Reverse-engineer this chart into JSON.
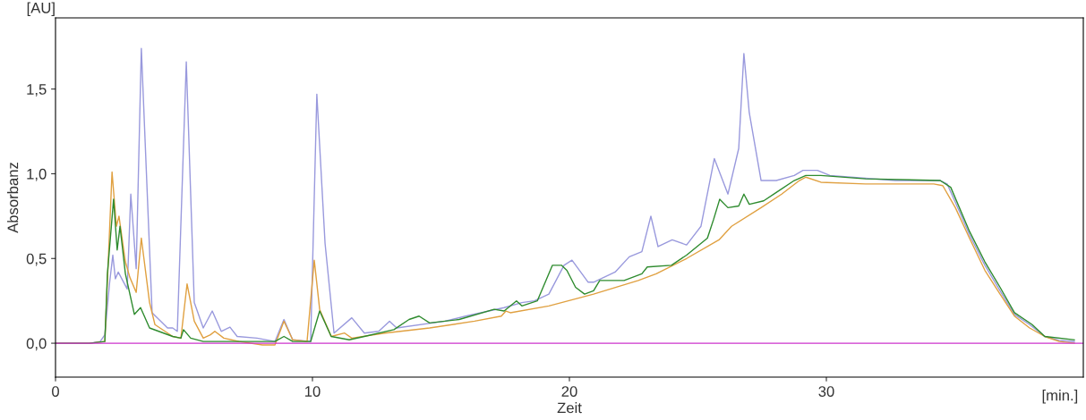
{
  "chart_data": {
    "type": "line",
    "xlabel": "Zeit",
    "ylabel": "Absorbanz",
    "annotations": [
      "[AU]",
      "[min.]"
    ],
    "xlim": [
      0,
      40
    ],
    "xticks": [
      0,
      10,
      20,
      30
    ],
    "ylim": [
      -0.2,
      1.92
    ],
    "yticks": [
      {
        "value": 0,
        "label": "0,0"
      },
      {
        "value": 0.5,
        "label": "0,5"
      },
      {
        "value": 1,
        "label": "1,0"
      },
      {
        "value": 1.5,
        "label": "1,5"
      }
    ],
    "grid": false,
    "marker": "none",
    "line_style": "solid",
    "series": [
      {
        "color": "#9999dd",
        "x": [
          0,
          1.32,
          1.74,
          1.92,
          2.1,
          2.23,
          2.33,
          2.44,
          2.79,
          2.93,
          3.14,
          3.34,
          3.76,
          4.36,
          4.56,
          4.74,
          5.09,
          5.4,
          5.75,
          6.1,
          6.45,
          6.79,
          7.07,
          7.84,
          8.54,
          8.89,
          9.23,
          9.93,
          10.17,
          10.49,
          10.84,
          11.53,
          12.02,
          12.58,
          13.0,
          13.28,
          15.16,
          15.96,
          17.46,
          18.15,
          18.64,
          19.2,
          19.79,
          20.1,
          20.73,
          20.94,
          21.78,
          22.33,
          22.82,
          23.17,
          23.45,
          24.0,
          24.56,
          25.12,
          25.64,
          26.17,
          26.59,
          26.79,
          27.0,
          27.46,
          28.05,
          28.75,
          29.09,
          29.65,
          30.14,
          32.68,
          34.43,
          34.7,
          35.23,
          35.57,
          36.17,
          36.76,
          37.32,
          37.91,
          38.5,
          39.06,
          39.65
        ],
        "values": [
          0,
          0,
          0.01,
          0.05,
          0.35,
          0.52,
          0.38,
          0.42,
          0.32,
          0.88,
          0.44,
          1.74,
          0.18,
          0.09,
          0.09,
          0.07,
          1.66,
          0.24,
          0.09,
          0.19,
          0.07,
          0.095,
          0.04,
          0.03,
          0.01,
          0.14,
          0.02,
          0.01,
          1.47,
          0.59,
          0.06,
          0.15,
          0.06,
          0.07,
          0.13,
          0.09,
          0.13,
          0.16,
          0.21,
          0.24,
          0.25,
          0.29,
          0.46,
          0.49,
          0.36,
          0.36,
          0.42,
          0.51,
          0.54,
          0.75,
          0.57,
          0.61,
          0.58,
          0.69,
          1.09,
          0.88,
          1.15,
          1.71,
          1.36,
          0.96,
          0.96,
          0.99,
          1.02,
          1.02,
          0.99,
          0.96,
          0.96,
          0.94,
          0.76,
          0.64,
          0.46,
          0.31,
          0.17,
          0.11,
          0.04,
          0.016,
          0.01
        ]
      },
      {
        "color": "#e0a040",
        "x": [
          0,
          1.32,
          1.92,
          2.2,
          2.37,
          2.47,
          2.72,
          2.89,
          3.14,
          3.34,
          3.66,
          3.87,
          4.56,
          4.88,
          5.12,
          5.4,
          5.75,
          6.03,
          6.2,
          6.55,
          7.14,
          8.05,
          8.54,
          8.89,
          9.23,
          9.79,
          10.07,
          10.28,
          10.73,
          11.25,
          11.53,
          12.82,
          14.56,
          16.31,
          17.35,
          17.53,
          17.7,
          19.2,
          20.94,
          22.68,
          23.38,
          24.56,
          25.82,
          26.31,
          27.46,
          28.26,
          28.95,
          29.2,
          29.79,
          31.53,
          34.18,
          34.53,
          35.02,
          35.57,
          36.17,
          36.76,
          37.32,
          37.91,
          38.5,
          39.06,
          39.65
        ],
        "values": [
          0,
          0,
          0.01,
          1.01,
          0.69,
          0.75,
          0.48,
          0.39,
          0.3,
          0.62,
          0.24,
          0.11,
          0.04,
          0.03,
          0.35,
          0.13,
          0.03,
          0.05,
          0.07,
          0.03,
          0.01,
          -0.01,
          -0.01,
          0.13,
          0.02,
          0.01,
          0.49,
          0.2,
          0.04,
          0.06,
          0.03,
          0.06,
          0.09,
          0.13,
          0.16,
          0.19,
          0.18,
          0.22,
          0.29,
          0.37,
          0.41,
          0.5,
          0.61,
          0.69,
          0.8,
          0.88,
          0.96,
          0.98,
          0.95,
          0.94,
          0.94,
          0.93,
          0.8,
          0.62,
          0.43,
          0.29,
          0.16,
          0.09,
          0.04,
          0.01,
          0
        ]
      },
      {
        "color": "#2e8b2e",
        "x": [
          0,
          1.32,
          1.92,
          2.02,
          2.26,
          2.4,
          2.51,
          2.72,
          3.07,
          3.31,
          3.66,
          4.56,
          4.88,
          4.98,
          5.26,
          5.75,
          8.54,
          8.89,
          9.23,
          9.93,
          10.28,
          10.73,
          11.43,
          12.02,
          13.17,
          13.76,
          14.15,
          14.56,
          15.71,
          17.07,
          17.46,
          17.94,
          18.15,
          18.75,
          19.34,
          19.69,
          19.9,
          20.24,
          20.59,
          20.94,
          21.18,
          22.13,
          22.82,
          23.03,
          23.97,
          24.56,
          25.37,
          25.61,
          25.85,
          26.17,
          26.59,
          26.79,
          27.0,
          27.56,
          28.05,
          28.75,
          29.2,
          29.79,
          31.53,
          34.43,
          34.84,
          35.57,
          36.17,
          36.76,
          37.32,
          38.01,
          38.5,
          39.65
        ],
        "values": [
          0,
          0,
          0.01,
          0.41,
          0.85,
          0.55,
          0.69,
          0.41,
          0.17,
          0.21,
          0.09,
          0.04,
          0.03,
          0.08,
          0.03,
          0.01,
          0.01,
          0.04,
          0.01,
          0.01,
          0.19,
          0.04,
          0.02,
          0.04,
          0.08,
          0.14,
          0.16,
          0.12,
          0.14,
          0.2,
          0.19,
          0.25,
          0.22,
          0.25,
          0.46,
          0.46,
          0.43,
          0.33,
          0.29,
          0.31,
          0.37,
          0.37,
          0.41,
          0.45,
          0.46,
          0.52,
          0.62,
          0.73,
          0.85,
          0.8,
          0.81,
          0.88,
          0.82,
          0.84,
          0.89,
          0.96,
          0.99,
          0.99,
          0.97,
          0.96,
          0.92,
          0.66,
          0.48,
          0.33,
          0.18,
          0.11,
          0.04,
          0.02
        ]
      },
      {
        "color": "#cc33cc",
        "x": [
          0,
          40
        ],
        "values": [
          0,
          0
        ]
      }
    ]
  }
}
